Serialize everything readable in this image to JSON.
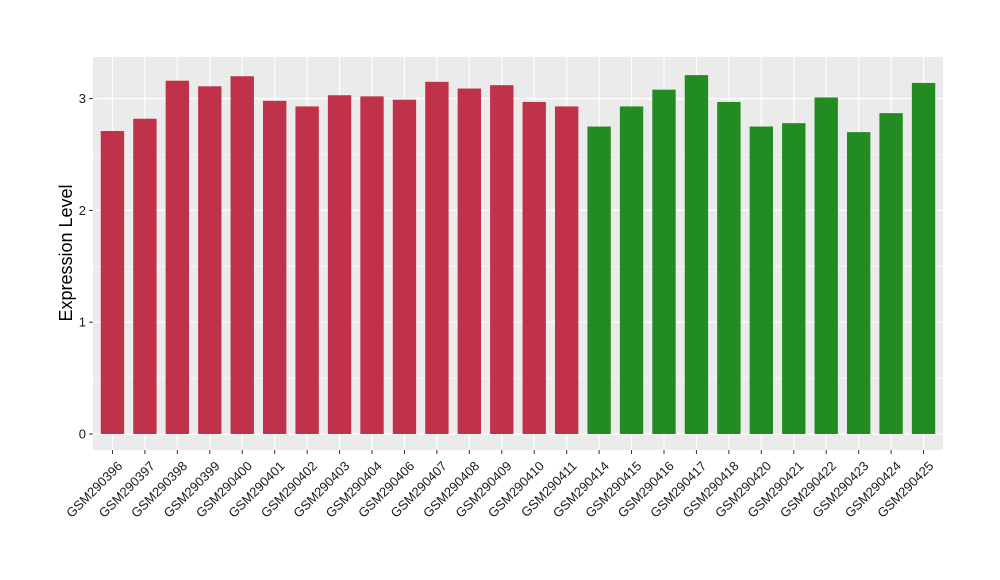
{
  "chart_data": {
    "type": "bar",
    "title": "",
    "xlabel": "",
    "ylabel": "Expression Level",
    "ylim": [
      0,
      3.3
    ],
    "yticks": [
      0,
      1,
      2,
      3
    ],
    "grid": true,
    "legend": "none",
    "categories": [
      "GSM290396",
      "GSM290397",
      "GSM290398",
      "GSM290399",
      "GSM290400",
      "GSM290401",
      "GSM290402",
      "GSM290403",
      "GSM290404",
      "GSM290406",
      "GSM290407",
      "GSM290408",
      "GSM290409",
      "GSM290410",
      "GSM290411",
      "GSM290414",
      "GSM290415",
      "GSM290416",
      "GSM290417",
      "GSM290418",
      "GSM290420",
      "GSM290421",
      "GSM290422",
      "GSM290423",
      "GSM290424",
      "GSM290425"
    ],
    "values": [
      2.71,
      2.82,
      3.16,
      3.11,
      3.2,
      2.98,
      2.93,
      3.03,
      3.02,
      2.99,
      3.15,
      3.09,
      3.12,
      2.97,
      2.93,
      2.75,
      2.93,
      3.08,
      3.21,
      2.97,
      2.75,
      2.78,
      3.01,
      2.7,
      2.87,
      3.14
    ],
    "group_colors": [
      "#c0314a",
      "#c0314a",
      "#c0314a",
      "#c0314a",
      "#c0314a",
      "#c0314a",
      "#c0314a",
      "#c0314a",
      "#c0314a",
      "#c0314a",
      "#c0314a",
      "#c0314a",
      "#c0314a",
      "#c0314a",
      "#c0314a",
      "#228b22",
      "#228b22",
      "#228b22",
      "#228b22",
      "#228b22",
      "#228b22",
      "#228b22",
      "#228b22",
      "#228b22",
      "#228b22",
      "#228b22"
    ],
    "panel_background": "#ebebeb",
    "grid_color": "#ffffff"
  }
}
